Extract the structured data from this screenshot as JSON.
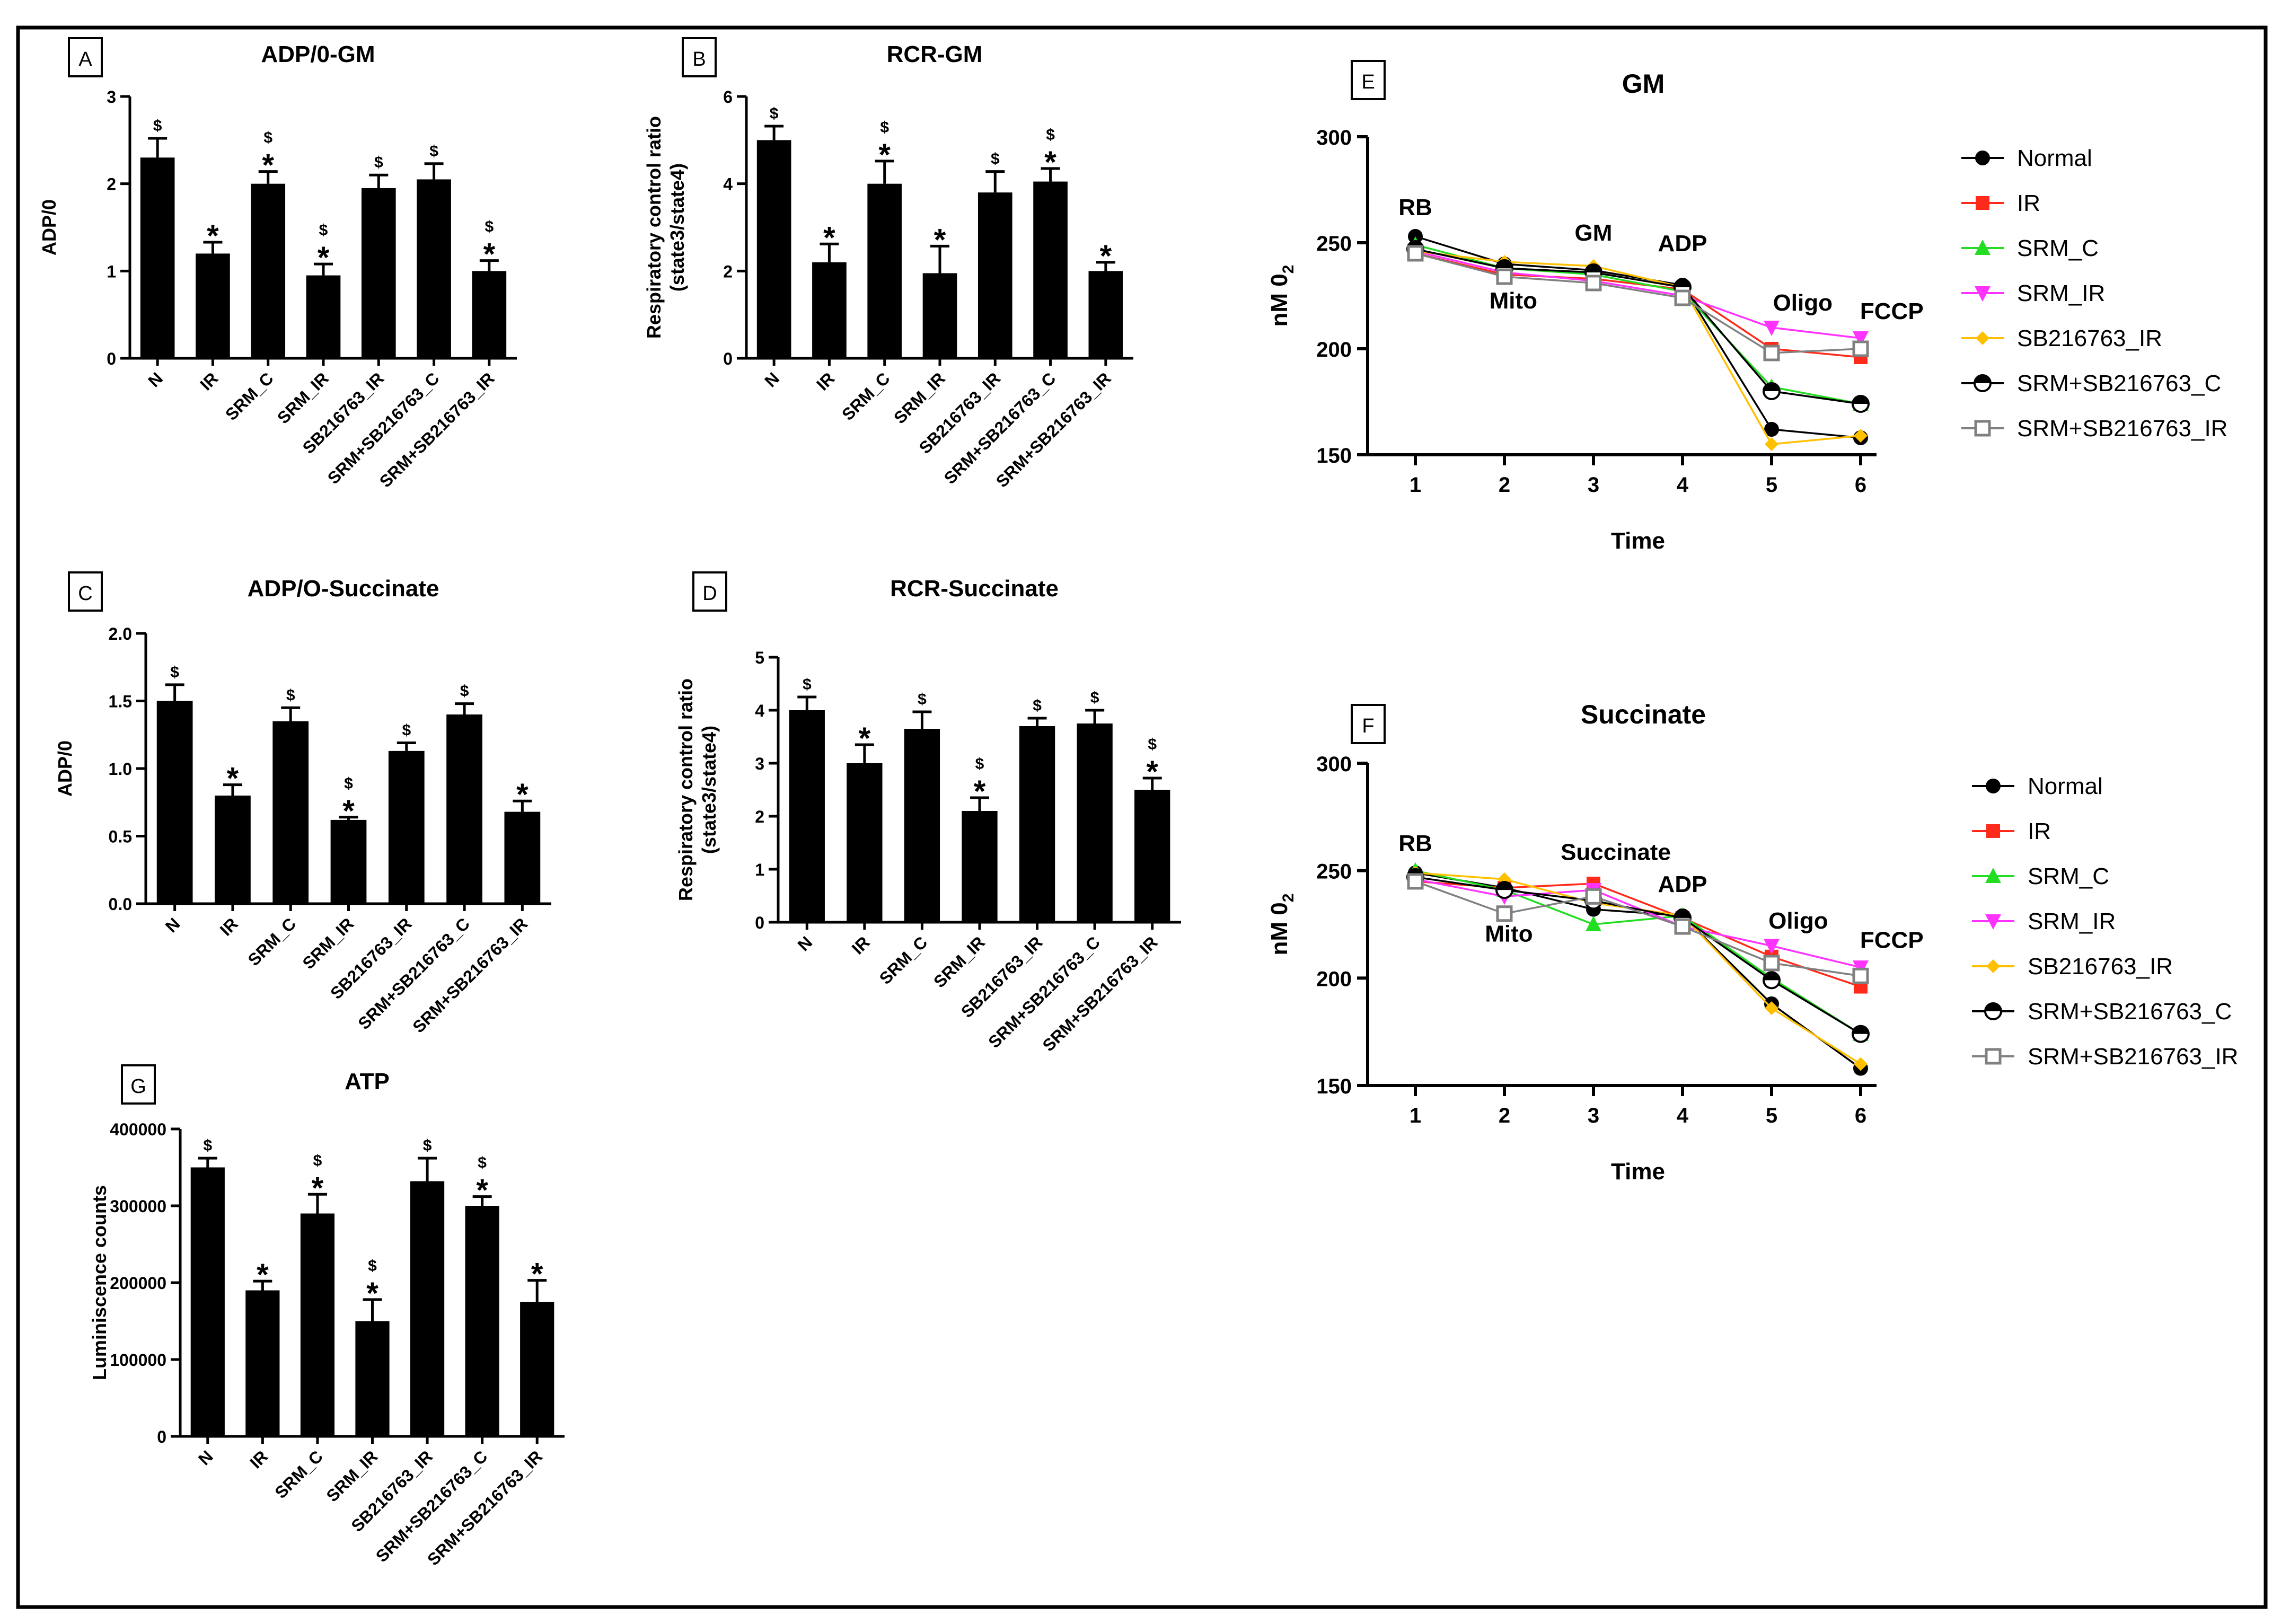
{
  "figure": {
    "frame_color": "#000000",
    "bar_color": "#000000"
  },
  "chart_data": [
    {
      "id": "A",
      "type": "bar",
      "title": "ADP/0-GM",
      "ylabel": "ADP/0",
      "ylabel2": "",
      "ylim": [
        0,
        3
      ],
      "yticks": [
        "0",
        "1",
        "2",
        "3"
      ],
      "ytick_values": [
        0,
        1,
        2,
        3
      ],
      "categories": [
        "N",
        "IR",
        "SRM_C",
        "SRM_IR",
        "SB216763_IR",
        "SRM+SB216763_C",
        "SRM+SB216763_IR"
      ],
      "values": [
        2.3,
        1.2,
        2.0,
        0.95,
        1.95,
        2.05,
        1.0
      ],
      "errors": [
        0.22,
        0.13,
        0.14,
        0.13,
        0.15,
        0.18,
        0.12
      ],
      "marks": [
        "$",
        "*",
        "$*",
        "$*",
        "$",
        "$",
        "$*"
      ]
    },
    {
      "id": "B",
      "type": "bar",
      "title": "RCR-GM",
      "ylabel": "Respiratory control ratio",
      "ylabel2": "(state3/state4)",
      "ylim": [
        0,
        6
      ],
      "yticks": [
        "0",
        "2",
        "4",
        "6"
      ],
      "ytick_values": [
        0,
        2,
        4,
        6
      ],
      "categories": [
        "N",
        "IR",
        "SRM_C",
        "SRM_IR",
        "SB216763_IR",
        "SRM+SB216763_C",
        "SRM+SB216763_IR"
      ],
      "values": [
        5.0,
        2.2,
        4.0,
        1.95,
        3.8,
        4.05,
        2.0
      ],
      "errors": [
        0.32,
        0.42,
        0.52,
        0.62,
        0.48,
        0.3,
        0.2
      ],
      "marks": [
        "$",
        "*",
        "$*",
        "*",
        "$",
        "$*",
        "*"
      ]
    },
    {
      "id": "C",
      "type": "bar",
      "title": "ADP/O-Succinate",
      "ylabel": "ADP/0",
      "ylabel2": "",
      "ylim": [
        0,
        2
      ],
      "yticks": [
        "0.0",
        "0.5",
        "1.0",
        "1.5",
        "2.0"
      ],
      "ytick_values": [
        0,
        0.5,
        1,
        1.5,
        2
      ],
      "categories": [
        "N",
        "IR",
        "SRM_C",
        "SRM_IR",
        "SB216763_IR",
        "SRM+SB216763_C",
        "SRM+SB216763_IR"
      ],
      "values": [
        1.5,
        0.8,
        1.35,
        0.62,
        1.13,
        1.4,
        0.68
      ],
      "errors": [
        0.12,
        0.08,
        0.1,
        0.02,
        0.06,
        0.08,
        0.08
      ],
      "marks": [
        "$",
        "*",
        "$",
        "$*",
        "$",
        "$",
        "*"
      ]
    },
    {
      "id": "D",
      "type": "bar",
      "title": "RCR-Succinate",
      "ylabel": "Respiratory control ratio",
      "ylabel2": "(state3/state4)",
      "ylim": [
        0,
        5
      ],
      "yticks": [
        "0",
        "1",
        "2",
        "3",
        "4",
        "5"
      ],
      "ytick_values": [
        0,
        1,
        2,
        3,
        4,
        5
      ],
      "categories": [
        "N",
        "IR",
        "SRM_C",
        "SRM_IR",
        "SB216763_IR",
        "SRM+SB216763_C",
        "SRM+SB216763_IR"
      ],
      "values": [
        4.0,
        3.0,
        3.65,
        2.1,
        3.7,
        3.75,
        2.5
      ],
      "errors": [
        0.25,
        0.35,
        0.32,
        0.25,
        0.15,
        0.25,
        0.22
      ],
      "marks": [
        "$",
        "*",
        "$",
        "$*",
        "$",
        "$",
        "$*"
      ]
    },
    {
      "id": "G",
      "type": "bar",
      "title": "ATP",
      "ylabel": "Luminiscence counts",
      "ylabel2": "",
      "ylim": [
        0,
        400000
      ],
      "yticks": [
        "0",
        "100000",
        "200000",
        "300000",
        "400000"
      ],
      "ytick_values": [
        0,
        100000,
        200000,
        300000,
        400000
      ],
      "categories": [
        "N",
        "IR",
        "SRM_C",
        "SRM_IR",
        "SB216763_IR",
        "SRM+SB216763_C",
        "SRM+SB216763_IR"
      ],
      "values": [
        350000,
        190000,
        290000,
        150000,
        332000,
        300000,
        175000
      ],
      "errors": [
        12000,
        12000,
        25000,
        28000,
        30000,
        12000,
        28000
      ],
      "marks": [
        "$",
        "*",
        "$*",
        "$*",
        "$",
        "$*",
        "*"
      ]
    },
    {
      "id": "E",
      "type": "line",
      "title": "GM",
      "xlabel": "Time",
      "ylabel": "nM 0",
      "ylabel_sub": "2",
      "ylim": [
        150,
        300
      ],
      "yticks": [
        "150",
        "200",
        "250",
        "300"
      ],
      "ytick_values": [
        150,
        200,
        250,
        300
      ],
      "x": [
        1,
        2,
        3,
        4,
        5,
        6
      ],
      "xticks": [
        "1",
        "2",
        "3",
        "4",
        "5",
        "6"
      ],
      "annotations": [
        {
          "text": "RB",
          "x": 1,
          "y": 263
        },
        {
          "text": "Mito",
          "x": 2.1,
          "y": 219
        },
        {
          "text": "GM",
          "x": 3.0,
          "y": 251
        },
        {
          "text": "ADP",
          "x": 4.0,
          "y": 246
        },
        {
          "text": "Oligo",
          "x": 5.35,
          "y": 218
        },
        {
          "text": "FCCP",
          "x": 6.35,
          "y": 214
        }
      ],
      "series": [
        {
          "name": "Normal",
          "marker": "circle",
          "color": "#000000",
          "values": [
            253,
            240,
            237,
            230,
            162,
            158
          ]
        },
        {
          "name": "IR",
          "marker": "square",
          "color": "#ff2a1a",
          "values": [
            245,
            235,
            233,
            228,
            200,
            196
          ]
        },
        {
          "name": "SRM_C",
          "marker": "triangle",
          "color": "#22dd22",
          "values": [
            249,
            238,
            235,
            227,
            182,
            174
          ]
        },
        {
          "name": "SRM_IR",
          "marker": "triangle-down",
          "color": "#ff33ff",
          "values": [
            246,
            236,
            232,
            225,
            210,
            205
          ]
        },
        {
          "name": "SB216763_IR",
          "marker": "diamond",
          "color": "#ffc000",
          "values": [
            246,
            241,
            239,
            229,
            155,
            159
          ]
        },
        {
          "name": "SRM+SB216763_C",
          "marker": "half-circle",
          "color": "#000000",
          "values": [
            247,
            238,
            236,
            229,
            180,
            174
          ]
        },
        {
          "name": "SRM+SB216763_IR",
          "marker": "open-square",
          "color": "#808080",
          "values": [
            245,
            234,
            231,
            224,
            198,
            200
          ]
        }
      ]
    },
    {
      "id": "F",
      "type": "line",
      "title": "Succinate",
      "xlabel": "Time",
      "ylabel": "nM 0",
      "ylabel_sub": "2",
      "ylim": [
        150,
        300
      ],
      "yticks": [
        "150",
        "200",
        "250",
        "300"
      ],
      "ytick_values": [
        150,
        200,
        250,
        300
      ],
      "x": [
        1,
        2,
        3,
        4,
        5,
        6
      ],
      "xticks": [
        "1",
        "2",
        "3",
        "4",
        "5",
        "6"
      ],
      "annotations": [
        {
          "text": "RB",
          "x": 1,
          "y": 259
        },
        {
          "text": "Mito",
          "x": 2.05,
          "y": 217
        },
        {
          "text": "Succinate",
          "x": 3.25,
          "y": 255
        },
        {
          "text": "ADP",
          "x": 4.0,
          "y": 240
        },
        {
          "text": "Oligo",
          "x": 5.3,
          "y": 223
        },
        {
          "text": "FCCP",
          "x": 6.35,
          "y": 214
        }
      ],
      "series": [
        {
          "name": "Normal",
          "marker": "circle",
          "color": "#000000",
          "values": [
            249,
            242,
            232,
            229,
            188,
            158
          ]
        },
        {
          "name": "IR",
          "marker": "square",
          "color": "#ff2a1a",
          "values": [
            245,
            242,
            244,
            228,
            210,
            196
          ]
        },
        {
          "name": "SRM_C",
          "marker": "triangle",
          "color": "#22dd22",
          "values": [
            250,
            241,
            225,
            229,
            200,
            174
          ]
        },
        {
          "name": "SRM_IR",
          "marker": "triangle-down",
          "color": "#ff33ff",
          "values": [
            246,
            238,
            241,
            224,
            215,
            205
          ]
        },
        {
          "name": "SB216763_IR",
          "marker": "diamond",
          "color": "#ffc000",
          "values": [
            249,
            246,
            235,
            229,
            186,
            160
          ]
        },
        {
          "name": "SRM+SB216763_C",
          "marker": "half-circle",
          "color": "#000000",
          "values": [
            247,
            241,
            236,
            228,
            199,
            174
          ]
        },
        {
          "name": "SRM+SB216763_IR",
          "marker": "open-square",
          "color": "#808080",
          "values": [
            245,
            230,
            238,
            224,
            207,
            201
          ]
        }
      ]
    }
  ]
}
